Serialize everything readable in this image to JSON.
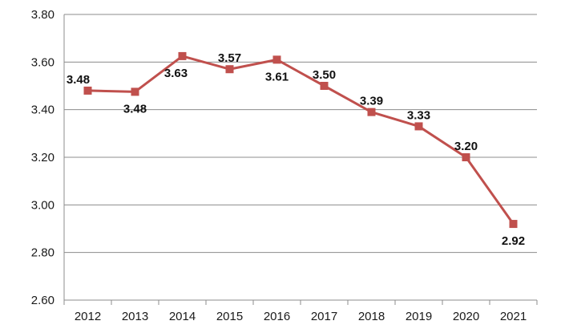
{
  "chart_data": {
    "type": "line",
    "title": "",
    "xlabel": "",
    "ylabel": "",
    "categories": [
      "2012",
      "2013",
      "2014",
      "2015",
      "2016",
      "2017",
      "2018",
      "2019",
      "2020",
      "2021"
    ],
    "series": [
      {
        "values": [
          3.48,
          3.475,
          3.625,
          3.57,
          3.61,
          3.5,
          3.39,
          3.33,
          3.2,
          2.92
        ],
        "data_labels": [
          "3.48",
          "3.48",
          "3.63",
          "3.57",
          "3.61",
          "3.50",
          "3.39",
          "3.33",
          "3.20",
          "2.92"
        ],
        "color": "#c0504d",
        "marker": "square"
      }
    ],
    "ylim": [
      2.6,
      3.8
    ],
    "yticks": [
      "2.60",
      "2.80",
      "3.00",
      "3.20",
      "3.40",
      "3.60",
      "3.80"
    ],
    "grid": "horizontal",
    "legend": "none"
  }
}
